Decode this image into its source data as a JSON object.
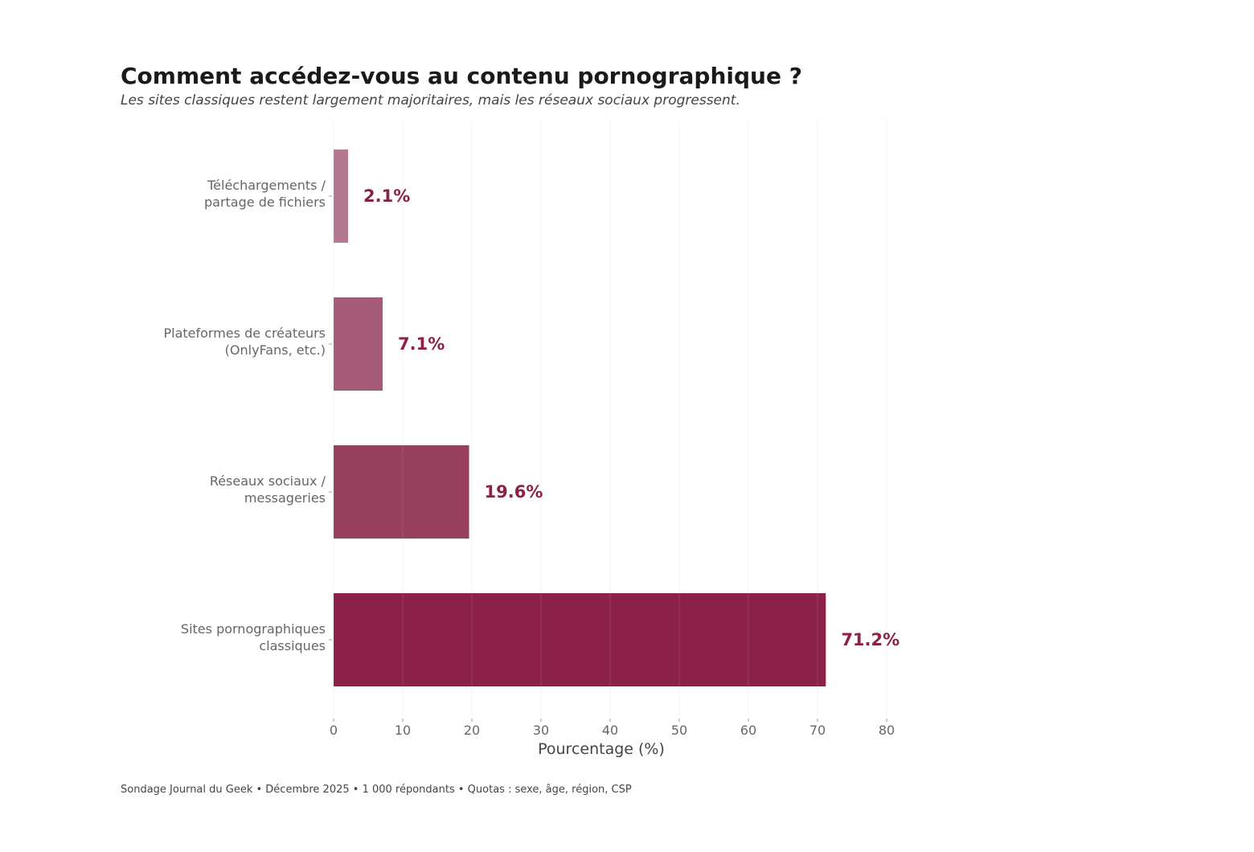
{
  "chart_data": {
    "type": "bar",
    "orientation": "horizontal",
    "title": "Comment accédez-vous au contenu pornographique ?",
    "subtitle": "Les sites classiques restent largement majoritaires, mais les réseaux sociaux progressent.",
    "source": "Sondage Journal du Geek • Décembre 2025 • 1 000 répondants • Quotas : sexe, âge, région, CSP",
    "xlabel": "Pourcentage (%)",
    "ylabel": "",
    "xlim": [
      0,
      80
    ],
    "xticks": [
      "0",
      "10",
      "20",
      "30",
      "40",
      "50",
      "60",
      "70",
      "80"
    ],
    "grid": "vertical",
    "categories": [
      [
        "Téléchargements /",
        "partage de fichiers"
      ],
      [
        "Plateformes de créateurs",
        "(OnlyFans, etc.)"
      ],
      [
        "Réseaux sociaux /",
        "messageries"
      ],
      [
        "Sites pornographiques",
        "classiques"
      ]
    ],
    "values": [
      2.1,
      7.1,
      19.6,
      71.2
    ],
    "value_labels": [
      "2.1%",
      "7.1%",
      "19.6%",
      "71.2%"
    ],
    "bar_colors": [
      "#b57891",
      "#a55a77",
      "#983f5d",
      "#8b2048"
    ],
    "label_color": "#8b2048"
  }
}
